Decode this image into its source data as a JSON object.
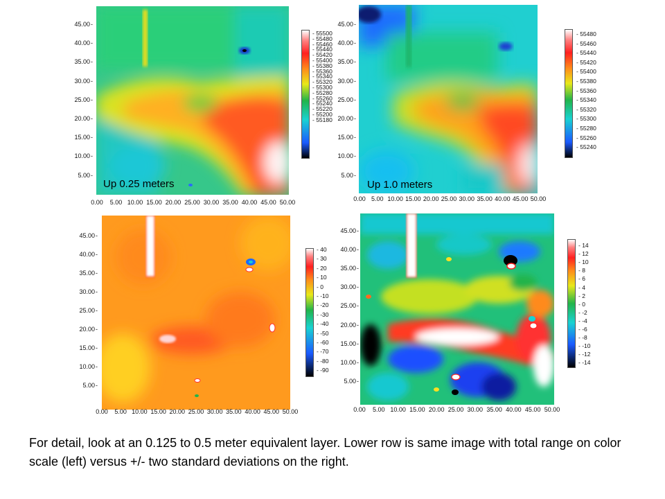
{
  "panels": [
    {
      "id": "top-left",
      "map_label": "Up 0.25 meters",
      "yticks": [
        "45.00",
        "40.00",
        "35.00",
        "30.00",
        "25.00",
        "20.00",
        "15.00",
        "10.00",
        "5.00"
      ],
      "xticks": [
        "0.00",
        "5.00",
        "10.00",
        "15.00",
        "20.00",
        "25.00",
        "30.00",
        "35.00",
        "40.00",
        "45.00",
        "50.00"
      ],
      "colorbar": [
        "55500",
        "55480",
        "55460",
        "55440",
        "55420",
        "55400",
        "55380",
        "55360",
        "55340",
        "55320",
        "55300",
        "55280",
        "55260",
        "55240",
        "55220",
        "55200",
        "55180"
      ]
    },
    {
      "id": "top-right",
      "map_label": "Up 1.0 meters",
      "yticks": [
        "45.00",
        "40.00",
        "35.00",
        "30.00",
        "25.00",
        "20.00",
        "15.00",
        "10.00",
        "5.00"
      ],
      "xticks": [
        "0.00",
        "5.00",
        "10.00",
        "15.00",
        "20.00",
        "25.00",
        "30.00",
        "35.00",
        "40.00",
        "45.00",
        "50.00"
      ],
      "colorbar": [
        "55480",
        "55460",
        "55440",
        "55420",
        "55400",
        "55380",
        "55360",
        "55340",
        "55320",
        "55300",
        "55280",
        "55260",
        "55240"
      ]
    },
    {
      "id": "bottom-left",
      "map_label": "",
      "yticks": [
        "45.00",
        "40.00",
        "35.00",
        "30.00",
        "25.00",
        "20.00",
        "15.00",
        "10.00",
        "5.00"
      ],
      "xticks": [
        "0.00",
        "5.00",
        "10.00",
        "15.00",
        "20.00",
        "25.00",
        "30.00",
        "35.00",
        "40.00",
        "45.00",
        "50.00"
      ],
      "colorbar": [
        "40",
        "30",
        "20",
        "10",
        "0",
        "-10",
        "-20",
        "-30",
        "-40",
        "-50",
        "-60",
        "-70",
        "-80",
        "-90"
      ]
    },
    {
      "id": "bottom-right",
      "map_label": "",
      "yticks": [
        "45.00",
        "40.00",
        "35.00",
        "30.00",
        "25.00",
        "20.00",
        "15.00",
        "10.00",
        "5.00"
      ],
      "xticks": [
        "0.00",
        "5.00",
        "10.00",
        "15.00",
        "20.00",
        "25.00",
        "30.00",
        "35.00",
        "40.00",
        "45.00",
        "50.00"
      ],
      "colorbar": [
        "14",
        "12",
        "10",
        "8",
        "6",
        "4",
        "2",
        "0",
        "-2",
        "-4",
        "-6",
        "-8",
        "-10",
        "-12",
        "-14"
      ]
    }
  ],
  "caption": "For detail, look at an 0.125 to 0.5 meter equivalent layer. Lower row is same image with total range on color scale (left) versus +/- two standard deviations on the right.",
  "colors": {
    "rainbow": [
      "#ffffff",
      "#ff2020",
      "#ff8a1a",
      "#e8e81a",
      "#22b44a",
      "#19d2d2",
      "#1a5aff",
      "#000000"
    ]
  }
}
